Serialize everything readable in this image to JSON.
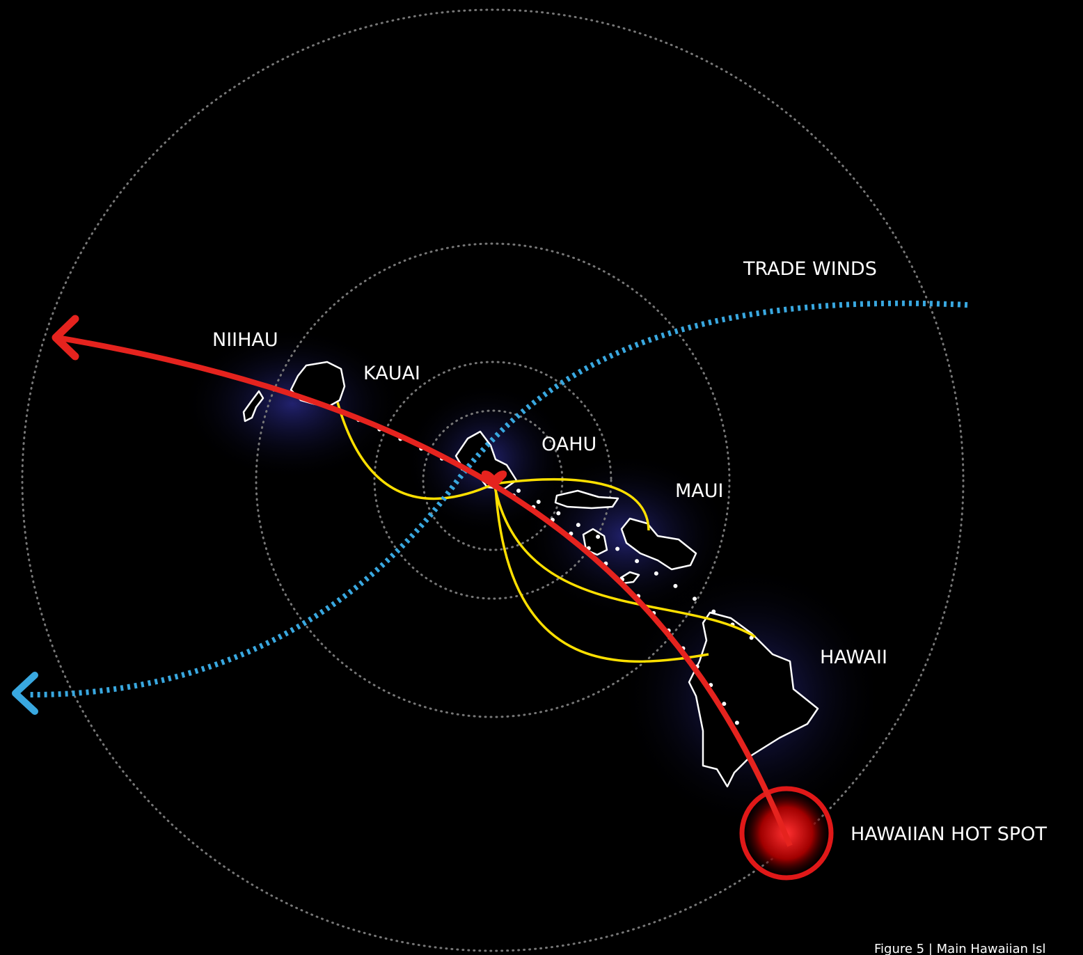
{
  "labels": {
    "trade_winds": "TRADE WINDS",
    "niihau": "NIIHAU",
    "kauai": "KAUAI",
    "oahu": "OAHU",
    "maui": "MAUI",
    "hawaii": "HAWAII",
    "hot_spot": "HAWAIIAN HOT SPOT"
  },
  "caption": "Figure 5 | Main Hawaiian Isl"
}
